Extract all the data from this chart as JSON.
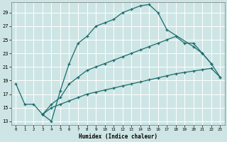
{
  "xlabel": "Humidex (Indice chaleur)",
  "bg_color": "#cee5e5",
  "grid_color": "#ffffff",
  "line_color": "#1a6b6b",
  "xlim": [
    -0.5,
    23.5
  ],
  "ylim": [
    12.5,
    30.5
  ],
  "xticks": [
    0,
    1,
    2,
    3,
    4,
    5,
    6,
    7,
    8,
    9,
    10,
    11,
    12,
    13,
    14,
    15,
    16,
    17,
    18,
    19,
    20,
    21,
    22,
    23
  ],
  "yticks": [
    13,
    15,
    17,
    19,
    21,
    23,
    25,
    27,
    29
  ],
  "line1_x": [
    0,
    1,
    2,
    3,
    4,
    5,
    6,
    7,
    8,
    9,
    10,
    11,
    12,
    13,
    14,
    15,
    16,
    17,
    20,
    21,
    22,
    23
  ],
  "line1_y": [
    18.5,
    15.5,
    15.5,
    14.0,
    13.0,
    17.5,
    21.5,
    24.5,
    25.5,
    27.0,
    27.5,
    28.0,
    29.0,
    29.5,
    30.0,
    30.2,
    29.0,
    26.5,
    24.0,
    23.0,
    21.5,
    19.5
  ],
  "line2_x": [
    3,
    4,
    5,
    6,
    7,
    8,
    9,
    10,
    11,
    12,
    13,
    14,
    15,
    16,
    17,
    18,
    19,
    20,
    21,
    22
  ],
  "line2_y": [
    14.0,
    15.5,
    16.5,
    18.5,
    19.5,
    20.5,
    21.0,
    21.5,
    22.0,
    22.5,
    23.0,
    23.5,
    24.0,
    24.5,
    25.0,
    25.5,
    24.5,
    24.5,
    23.0,
    21.5
  ],
  "line3_x": [
    3,
    4,
    5,
    6,
    7,
    8,
    9,
    10,
    11,
    12,
    13,
    14,
    15,
    16,
    17,
    18,
    19,
    20,
    21,
    22,
    23
  ],
  "line3_y": [
    14.0,
    15.0,
    15.5,
    16.0,
    16.5,
    17.0,
    17.3,
    17.6,
    17.9,
    18.2,
    18.5,
    18.8,
    19.1,
    19.4,
    19.7,
    20.0,
    20.2,
    20.4,
    20.6,
    20.8,
    19.5
  ]
}
